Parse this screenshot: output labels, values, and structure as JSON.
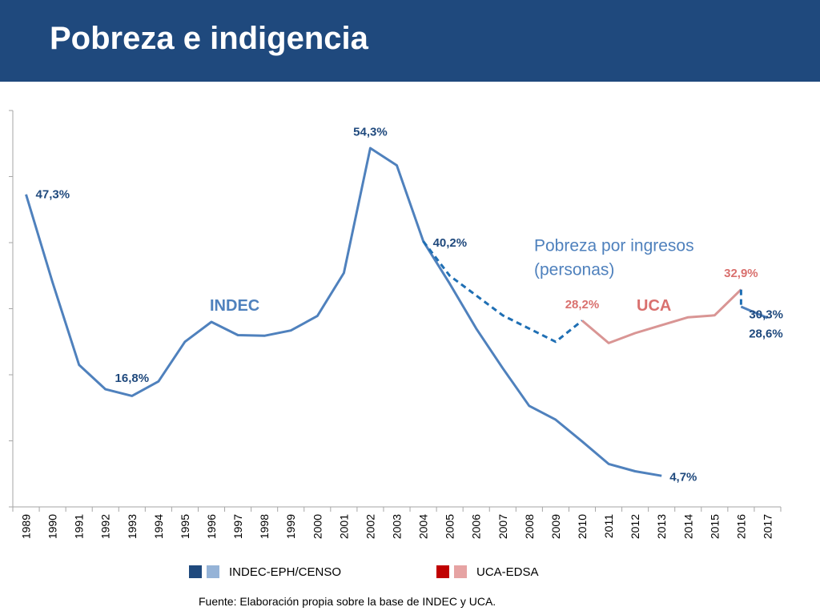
{
  "header": {
    "title": "Pobreza e indigencia"
  },
  "colors": {
    "title_bg": "#1f497d",
    "indec_dark": "#1f497d",
    "indec_line": "#4f81bd",
    "indec_light": "#95b3d7",
    "uca_dark": "#c00000",
    "uca_line": "#d99594",
    "uca_light": "#e6a3a3"
  },
  "legend": {
    "indec_label": "INDEC-EPH/CENSO",
    "uca_label": "UCA-EDSA"
  },
  "source_note": "Fuente: Elaboración propia sobre la base de INDEC y UCA.",
  "chart_data": {
    "type": "line",
    "x": [
      1989,
      1990,
      1991,
      1992,
      1993,
      1994,
      1995,
      1996,
      1997,
      1998,
      1999,
      2000,
      2001,
      2002,
      2003,
      2004,
      2005,
      2006,
      2007,
      2008,
      2009,
      2010,
      2011,
      2012,
      2013,
      2014,
      2015,
      2016,
      2017
    ],
    "tick_labels": [
      "1989",
      "1990",
      "1991",
      "1992",
      "1993",
      "1994",
      "1995",
      "1996",
      "1997",
      "1998",
      "1999",
      "2000",
      "2001",
      "2002",
      "2003",
      "2004",
      "2005",
      "2006",
      "2007",
      "2008",
      "2009",
      "2010",
      "2011",
      "2012",
      "2013",
      "2014",
      "2015",
      "2016",
      "2017"
    ],
    "ylim": [
      0,
      60
    ],
    "series": [
      {
        "key": "indec_main",
        "style": "solid",
        "color": "#4f81bd",
        "x": [
          1989,
          1990,
          1991,
          1992,
          1993,
          1994,
          1995,
          1996,
          1997,
          1998,
          1999,
          2000,
          2001,
          2002,
          2003,
          2004,
          2005,
          2006,
          2007,
          2008,
          2009,
          2010,
          2011,
          2012,
          2013
        ],
        "values": [
          47.3,
          34.0,
          21.5,
          17.8,
          16.8,
          19.0,
          25.0,
          28.0,
          26.0,
          25.9,
          26.7,
          28.9,
          35.4,
          54.3,
          51.7,
          40.2,
          33.8,
          27.0,
          21.0,
          15.3,
          13.2,
          9.9,
          6.5,
          5.4,
          4.7
        ]
      },
      {
        "key": "indec_alt",
        "style": "dashed",
        "color": "#1f6fb4",
        "x": [
          2004,
          2005,
          2006,
          2007,
          2008,
          2009,
          2010
        ],
        "values": [
          40.2,
          35.0,
          32.0,
          29.0,
          27.0,
          25.0,
          28.2
        ]
      },
      {
        "key": "uca",
        "style": "solid",
        "color": "#d99594",
        "x": [
          2010,
          2011,
          2012,
          2013,
          2014,
          2015,
          2016
        ],
        "values": [
          28.2,
          24.8,
          26.3,
          27.5,
          28.7,
          29.0,
          32.9
        ]
      },
      {
        "key": "indec_recent",
        "style": "solid",
        "color": "#4f81bd",
        "x": [
          2016,
          2017
        ],
        "values": [
          30.3,
          28.6
        ]
      },
      {
        "key": "connector_2016",
        "style": "dashed",
        "color": "#1f6fb4",
        "x": [
          2016,
          2016
        ],
        "values": [
          32.9,
          30.3
        ]
      }
    ],
    "data_labels": [
      {
        "text": "47,3%",
        "x": 1989,
        "y": 47.3,
        "color": "#1f497d"
      },
      {
        "text": "16,8%",
        "x": 1993,
        "y": 16.8,
        "color": "#1f497d"
      },
      {
        "text": "54,3%",
        "x": 2002,
        "y": 54.3,
        "color": "#1f497d"
      },
      {
        "text": "40,2%",
        "x": 2004,
        "y": 40.2,
        "color": "#1f497d"
      },
      {
        "text": "28,2%",
        "x": 2010,
        "y": 28.2,
        "color": "#d9706e"
      },
      {
        "text": "32,9%",
        "x": 2016,
        "y": 32.9,
        "color": "#d9706e"
      },
      {
        "text": "30,3%",
        "x": 2016,
        "y": 30.3,
        "color": "#1f497d"
      },
      {
        "text": "28,6%",
        "x": 2017,
        "y": 28.6,
        "color": "#1f497d"
      },
      {
        "text": "4,7%",
        "x": 2013,
        "y": 4.7,
        "color": "#1f497d"
      }
    ],
    "annotations": [
      {
        "key": "indec",
        "text": "INDEC",
        "color": "#4f81bd"
      },
      {
        "key": "uca",
        "text": "UCA",
        "color": "#d9706e"
      },
      {
        "key": "note1",
        "text": "Pobreza por ingresos",
        "color": "#4f81bd"
      },
      {
        "key": "note2",
        "text": "(personas)",
        "color": "#4f81bd"
      }
    ]
  }
}
